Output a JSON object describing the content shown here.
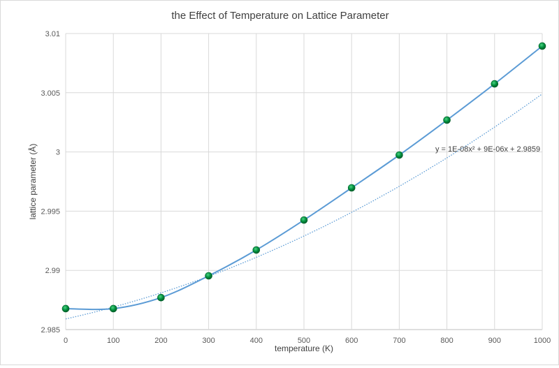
{
  "chart_data": {
    "type": "scatter",
    "title": "the Effect of Temperature on Lattice Parameter",
    "xlabel": "temperature (K)",
    "ylabel": "lattice parameter (Å)",
    "xlim": [
      0,
      1000
    ],
    "ylim": [
      2.985,
      3.01
    ],
    "x_ticks": [
      0,
      100,
      200,
      300,
      400,
      500,
      600,
      700,
      800,
      900,
      1000
    ],
    "x_tick_labels": [
      "0",
      "100",
      "200",
      "300",
      "400",
      "500",
      "600",
      "700",
      "800",
      "900",
      "1000"
    ],
    "y_ticks": [
      2.985,
      2.99,
      2.995,
      3.0,
      3.005,
      3.01
    ],
    "y_tick_labels": [
      "2.985",
      "2.99",
      "2.995",
      "3",
      "3.005",
      "3.01"
    ],
    "grid": true,
    "legend": "none",
    "series": [
      {
        "name": "lattice parameter",
        "style": "smooth line with markers",
        "line_color": "#5b9bd5",
        "marker_color": "#00913f",
        "x": [
          0,
          100,
          200,
          300,
          400,
          500,
          600,
          700,
          800,
          900,
          1000
        ],
        "y": [
          2.98677,
          2.98677,
          2.9877,
          2.98954,
          2.99172,
          2.99425,
          2.99697,
          2.99974,
          3.00269,
          3.00575,
          3.00894
        ]
      }
    ],
    "trendline": {
      "type": "polynomial order 2",
      "style": "dotted",
      "color": "#5b9bd5",
      "coefficients": [
        1e-08,
        9e-06,
        2.9859
      ],
      "equation_label": "y = 1E-08x² + 9E-06x + 2.9859"
    }
  }
}
